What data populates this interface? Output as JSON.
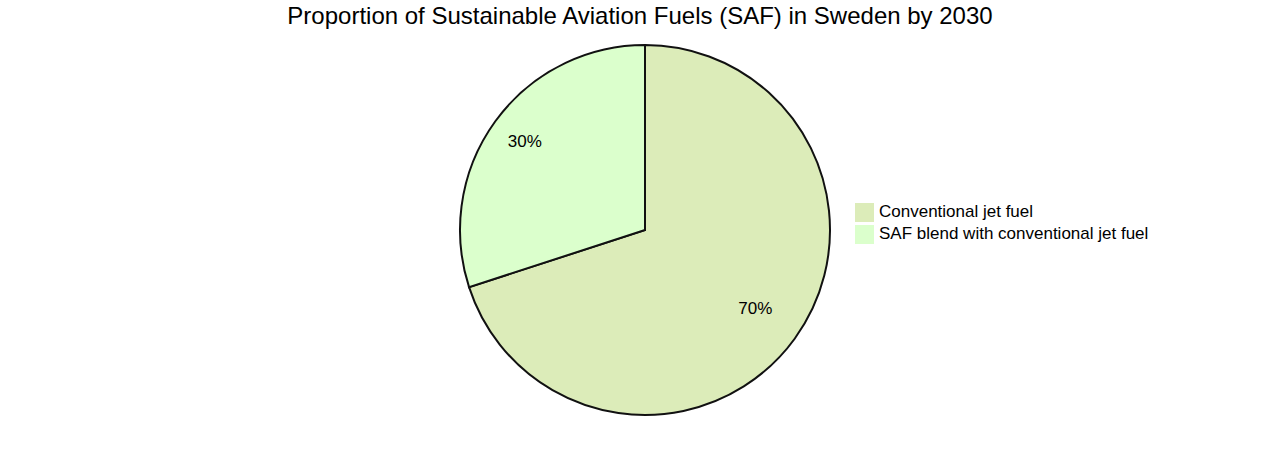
{
  "chart_data": {
    "type": "pie",
    "title": "Proportion of Sustainable Aviation Fuels (SAF) in Sweden by 2030",
    "categories": [
      "Conventional jet fuel",
      "SAF blend with conventional jet fuel"
    ],
    "values": [
      70,
      30
    ],
    "value_labels": [
      "70%",
      "30%"
    ],
    "colors": [
      "#dcecb9",
      "#dbffcc"
    ],
    "data_labels": true,
    "legend": "right"
  }
}
